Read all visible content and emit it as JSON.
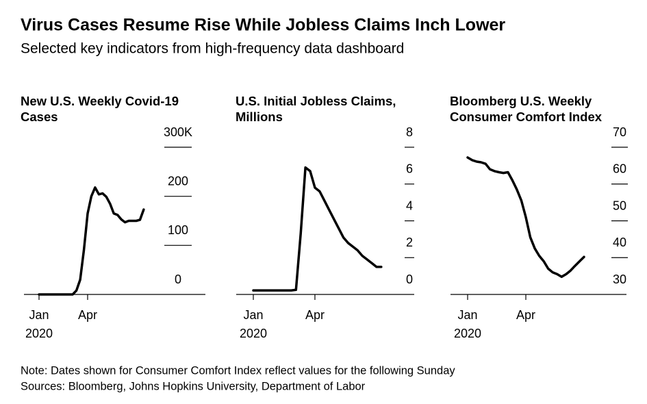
{
  "title": "Virus Cases Resume Rise While Jobless Claims Inch Lower",
  "subtitle": "Selected key indicators from high-frequency data dashboard",
  "chart_data": [
    {
      "type": "line",
      "title": [
        "New U.S. Weekly Covid-19",
        "Cases"
      ],
      "categories": [
        "Jan",
        null,
        null,
        null,
        null,
        null,
        null,
        null,
        null,
        null,
        null,
        null,
        null,
        "Apr",
        null,
        null,
        null,
        null,
        null,
        null,
        null,
        null,
        null,
        null,
        null,
        null,
        null,
        null,
        null
      ],
      "x_sublabel": "2020",
      "series": [
        {
          "name": "Cases",
          "color": "#000000",
          "values": [
            0,
            0,
            0,
            0,
            0,
            0,
            0,
            0,
            0,
            0,
            8000,
            30000,
            90000,
            165000,
            200000,
            218000,
            204000,
            206000,
            199000,
            185000,
            165000,
            162000,
            153000,
            147000,
            150000,
            150000,
            150000,
            152000,
            173000
          ]
        }
      ],
      "ylim": [
        0,
        300000
      ],
      "yticks": [
        0,
        {
          "value": 100000,
          "label": "100"
        },
        {
          "value": 200000,
          "label": "200"
        },
        {
          "value": 300000,
          "label": "300K"
        }
      ]
    },
    {
      "type": "line",
      "title": [
        "U.S. Initial Jobless Claims,",
        "Millions"
      ],
      "categories": [
        "Jan",
        null,
        null,
        null,
        null,
        null,
        null,
        null,
        null,
        null,
        null,
        null,
        null,
        "Apr",
        null,
        null,
        null,
        null,
        null,
        null,
        null,
        null,
        null,
        null,
        null,
        null,
        null,
        null
      ],
      "x_sublabel": "2020",
      "series": [
        {
          "name": "Claims",
          "color": "#000000",
          "values": [
            0.22,
            0.22,
            0.22,
            0.22,
            0.22,
            0.22,
            0.22,
            0.22,
            0.22,
            0.25,
            3.3,
            6.9,
            6.7,
            5.8,
            5.6,
            5.1,
            4.6,
            4.1,
            3.6,
            3.1,
            2.8,
            2.6,
            2.4,
            2.1,
            1.9,
            1.7,
            1.5,
            1.5
          ]
        }
      ],
      "ylim": [
        0,
        8
      ],
      "yticks": [
        0,
        2,
        4,
        6,
        8
      ]
    },
    {
      "type": "line",
      "title": [
        "Bloomberg U.S. Weekly",
        "Consumer Comfort Index"
      ],
      "categories": [
        "Jan",
        null,
        null,
        null,
        null,
        null,
        null,
        null,
        null,
        null,
        null,
        null,
        null,
        "Apr",
        null,
        null,
        null,
        null,
        null,
        null,
        null,
        null,
        null,
        null,
        null,
        null,
        null
      ],
      "x_sublabel": "2020",
      "series": [
        {
          "name": "Comfort",
          "color": "#000000",
          "values": [
            67.2,
            66.5,
            66.1,
            65.9,
            65.5,
            64.0,
            63.5,
            63.2,
            63.0,
            63.2,
            61.0,
            58.5,
            55.5,
            51.0,
            45.5,
            42.5,
            40.5,
            39.0,
            37.0,
            36.0,
            35.5,
            34.8,
            35.5,
            36.5,
            37.8,
            39.0,
            40.2
          ]
        }
      ],
      "ylim": [
        30,
        70
      ],
      "yticks": [
        30,
        40,
        50,
        60,
        70
      ]
    }
  ],
  "note": "Note: Dates shown for Consumer Comfort Index reflect values for the following Sunday",
  "source": "Sources: Bloomberg, Johns Hopkins University, Department of Labor"
}
